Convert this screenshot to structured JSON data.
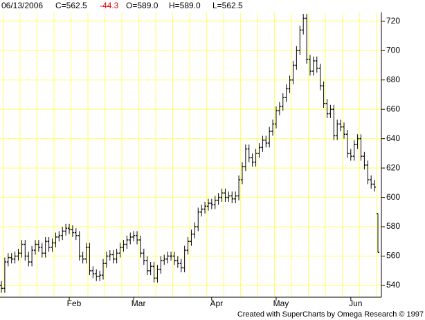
{
  "chart_data": {
    "type": "ohlc",
    "header": [
      "06/13/2006",
      "C=562.5",
      "-44.3",
      "O=589.0",
      "H=589.0",
      "L=562.5"
    ],
    "footer": "Created with SuperCharts by Omega Research © 1997",
    "categories": [
      null,
      null,
      null,
      null,
      null,
      null,
      null,
      null,
      null,
      null,
      null,
      null,
      null,
      null,
      null,
      null,
      null,
      null,
      null,
      null,
      "Feb",
      null,
      null,
      null,
      null,
      null,
      null,
      null,
      null,
      null,
      null,
      null,
      null,
      null,
      null,
      null,
      null,
      null,
      null,
      "Mar",
      null,
      null,
      null,
      null,
      null,
      null,
      null,
      null,
      null,
      null,
      null,
      null,
      null,
      null,
      null,
      null,
      null,
      null,
      null,
      null,
      null,
      null,
      "Apr",
      null,
      null,
      null,
      null,
      null,
      null,
      null,
      null,
      null,
      null,
      null,
      null,
      null,
      null,
      null,
      null,
      null,
      null,
      "May",
      null,
      null,
      null,
      null,
      null,
      null,
      null,
      null,
      null,
      null,
      null,
      null,
      null,
      null,
      null,
      null,
      null,
      null,
      null,
      null,
      null,
      "Jun",
      null,
      null,
      null,
      null,
      null,
      null,
      null,
      null
    ],
    "open": [
      540,
      538,
      556,
      559,
      558,
      560,
      562,
      568,
      560,
      556,
      564,
      568,
      566,
      562,
      570,
      566,
      569,
      573,
      574,
      577,
      579,
      578,
      576,
      574,
      560,
      558,
      566,
      550,
      548,
      546,
      547,
      555,
      560,
      561,
      558,
      562,
      566,
      568,
      571,
      573,
      574,
      571,
      562,
      557,
      550,
      553,
      545,
      551,
      557,
      558,
      560,
      560,
      557,
      555,
      552,
      564,
      570,
      575,
      580,
      590,
      592,
      594,
      596,
      595,
      598,
      600,
      603,
      600,
      601,
      599,
      601,
      612,
      621,
      633,
      627,
      624,
      630,
      634,
      639,
      637,
      645,
      650,
      659,
      662,
      668,
      674,
      680,
      690,
      700,
      714,
      722,
      694,
      686,
      693,
      688,
      676,
      664,
      657,
      660,
      642,
      650,
      648,
      643,
      630,
      628,
      636,
      640,
      628,
      622,
      612,
      609,
      589
    ],
    "high": [
      543,
      559,
      562,
      562,
      563,
      565,
      571,
      571,
      563,
      567,
      571,
      571,
      569,
      573,
      573,
      572,
      576,
      577,
      580,
      582,
      582,
      581,
      579,
      577,
      563,
      569,
      569,
      553,
      551,
      550,
      558,
      563,
      564,
      564,
      565,
      569,
      571,
      574,
      576,
      577,
      577,
      574,
      565,
      560,
      556,
      556,
      554,
      560,
      561,
      563,
      563,
      563,
      560,
      558,
      567,
      573,
      578,
      583,
      593,
      595,
      597,
      599,
      599,
      601,
      603,
      606,
      606,
      604,
      604,
      604,
      615,
      624,
      636,
      636,
      630,
      633,
      637,
      642,
      642,
      648,
      653,
      662,
      665,
      671,
      677,
      683,
      693,
      703,
      717,
      725,
      725,
      697,
      696,
      696,
      691,
      679,
      667,
      663,
      663,
      653,
      653,
      651,
      646,
      633,
      639,
      643,
      643,
      631,
      625,
      615,
      612,
      589
    ],
    "low": [
      535,
      535,
      553,
      555,
      555,
      557,
      559,
      557,
      553,
      553,
      561,
      563,
      559,
      559,
      563,
      563,
      566,
      570,
      571,
      574,
      575,
      573,
      571,
      557,
      555,
      555,
      547,
      545,
      543,
      543,
      544,
      552,
      557,
      555,
      555,
      559,
      563,
      565,
      568,
      570,
      568,
      559,
      554,
      547,
      547,
      542,
      542,
      548,
      554,
      555,
      557,
      554,
      552,
      549,
      549,
      561,
      567,
      572,
      577,
      587,
      589,
      591,
      592,
      592,
      595,
      597,
      597,
      597,
      596,
      596,
      598,
      609,
      618,
      624,
      621,
      621,
      627,
      631,
      634,
      634,
      642,
      647,
      656,
      659,
      665,
      671,
      677,
      687,
      697,
      711,
      691,
      683,
      683,
      685,
      673,
      661,
      654,
      654,
      639,
      639,
      645,
      640,
      627,
      625,
      625,
      633,
      625,
      619,
      609,
      606,
      604,
      562.5
    ],
    "close": [
      538,
      556,
      559,
      558,
      560,
      562,
      568,
      560,
      556,
      564,
      568,
      566,
      562,
      570,
      566,
      569,
      573,
      574,
      577,
      579,
      578,
      576,
      574,
      560,
      558,
      566,
      550,
      548,
      546,
      547,
      555,
      560,
      561,
      558,
      562,
      566,
      568,
      571,
      573,
      574,
      571,
      562,
      557,
      550,
      553,
      545,
      551,
      557,
      558,
      560,
      560,
      557,
      555,
      552,
      564,
      570,
      575,
      580,
      590,
      592,
      594,
      596,
      595,
      598,
      600,
      603,
      600,
      601,
      599,
      601,
      612,
      621,
      633,
      627,
      624,
      630,
      634,
      639,
      637,
      645,
      650,
      659,
      662,
      668,
      674,
      680,
      690,
      700,
      714,
      722,
      694,
      686,
      693,
      688,
      676,
      664,
      657,
      660,
      642,
      650,
      648,
      643,
      630,
      628,
      636,
      640,
      628,
      622,
      612,
      609,
      607,
      562.5
    ],
    "color": "#000000",
    "grid_color": "#ffff66",
    "ylim": [
      532,
      726
    ],
    "yticks": [
      540,
      560,
      580,
      600,
      620,
      640,
      660,
      680,
      700,
      720
    ],
    "grid": true
  }
}
